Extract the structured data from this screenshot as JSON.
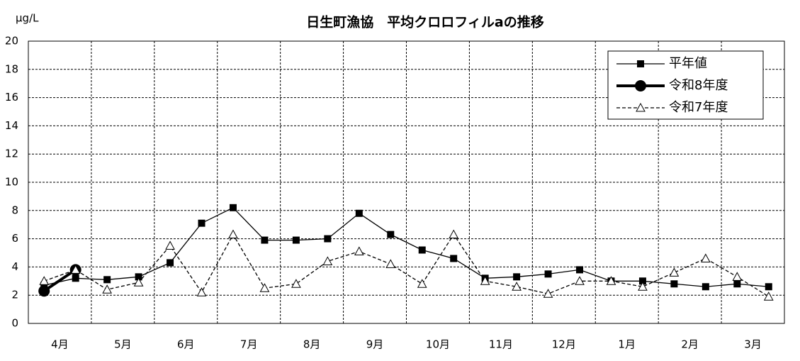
{
  "chart_data": {
    "type": "line",
    "title": "日生町漁協　平均クロロフィルaの推移",
    "y_label": "μg/L",
    "categories": [
      "4月",
      null,
      "5月",
      null,
      "6月",
      null,
      "7月",
      null,
      "8月",
      null,
      "9月",
      null,
      "10月",
      null,
      "11月",
      null,
      "12月",
      null,
      "1月",
      null,
      "2月",
      null,
      "3月",
      null
    ],
    "series": [
      {
        "name": "平年値",
        "color": "#000000",
        "marker": "square",
        "dash": false,
        "values": [
          2.7,
          3.2,
          3.1,
          3.3,
          4.3,
          7.1,
          8.2,
          5.9,
          5.9,
          6.0,
          7.8,
          6.3,
          5.2,
          4.6,
          3.2,
          3.3,
          3.5,
          3.8,
          3.0,
          3.0,
          2.8,
          2.6,
          2.8,
          2.6
        ]
      },
      {
        "name": "令和8年度",
        "color": "#000000",
        "marker": "circle",
        "dash": false,
        "values": [
          2.3,
          3.8,
          null,
          null,
          null,
          null,
          null,
          null,
          null,
          null,
          null,
          null,
          null,
          null,
          null,
          null,
          null,
          null,
          null,
          null,
          null,
          null,
          null,
          null
        ]
      },
      {
        "name": "令和7年度",
        "color": "#000000",
        "marker": "triangle",
        "dash": true,
        "values": [
          3.0,
          3.8,
          2.4,
          2.9,
          5.5,
          2.2,
          6.3,
          2.5,
          2.8,
          4.4,
          5.1,
          4.2,
          2.8,
          6.3,
          3.0,
          2.6,
          2.1,
          3.0,
          3.0,
          2.6,
          3.6,
          4.6,
          3.3,
          1.9
        ]
      }
    ],
    "ylim": [
      0,
      20
    ],
    "yticks": [
      0,
      2,
      4,
      6,
      8,
      10,
      12,
      14,
      16,
      18,
      20
    ],
    "grid": true,
    "legend": "upper right"
  }
}
